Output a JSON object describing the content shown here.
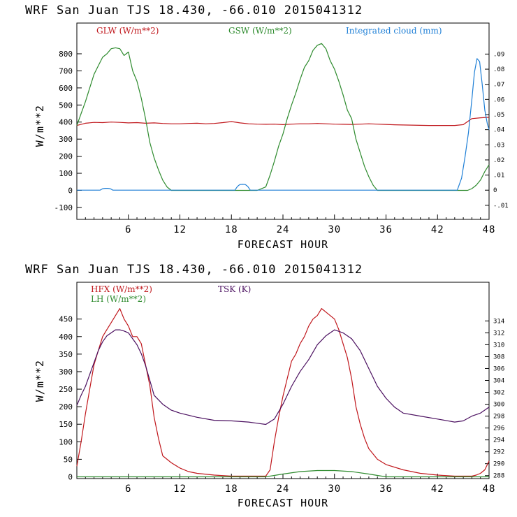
{
  "chart_data": [
    {
      "type": "line",
      "title": "WRF  San Juan TJS  18.430, -66.010  2015041312",
      "xlabel": "FORECAST HOUR",
      "ylabel": "W/m**2",
      "xlim": [
        0,
        48
      ],
      "ylim": [
        -170,
        980
      ],
      "xticks": [
        6,
        12,
        18,
        24,
        30,
        36,
        42,
        48
      ],
      "yticks": [
        -100,
        0,
        100,
        200,
        300,
        400,
        500,
        600,
        700,
        800
      ],
      "y2lim": [
        -0.0193,
        0.1105
      ],
      "y2ticks": [
        -0.01,
        0,
        0.01,
        0.02,
        0.03,
        0.04,
        0.05,
        0.06,
        0.07,
        0.08,
        0.09
      ],
      "y2ticklabels": [
        "-.01",
        "0",
        ".01",
        ".02",
        ".03",
        ".04",
        ".05",
        ".06",
        ".07",
        ".08",
        ".09"
      ],
      "series": [
        {
          "name": "GLW (W/m**2)",
          "color": "#c0171c",
          "axis": "left",
          "x": [
            0,
            1,
            2,
            3,
            4,
            5,
            6,
            7,
            8,
            9,
            10,
            11,
            12,
            13,
            14,
            15,
            16,
            17,
            18,
            19,
            20,
            21,
            22,
            23,
            24,
            25,
            26,
            27,
            28,
            29,
            30,
            31,
            32,
            33,
            34,
            35,
            36,
            37,
            38,
            39,
            40,
            41,
            42,
            43,
            44,
            45,
            46,
            47,
            48
          ],
          "y": [
            380,
            393,
            398,
            397,
            400,
            398,
            395,
            397,
            393,
            395,
            392,
            390,
            390,
            392,
            393,
            390,
            392,
            397,
            403,
            395,
            390,
            388,
            387,
            388,
            385,
            388,
            390,
            390,
            392,
            390,
            388,
            387,
            386,
            388,
            390,
            388,
            386,
            384,
            383,
            382,
            381,
            380,
            380,
            380,
            380,
            385,
            420,
            425,
            428
          ]
        },
        {
          "name": "GSW (W/m**2)",
          "color": "#2e8b2e",
          "axis": "left",
          "x": [
            0,
            0.5,
            1,
            1.5,
            2,
            2.5,
            3,
            3.5,
            4,
            4.5,
            5,
            5.5,
            6,
            6.5,
            7,
            7.5,
            8,
            8.5,
            9,
            9.5,
            10,
            10.5,
            11,
            21,
            22,
            22.5,
            23,
            23.5,
            24,
            24.5,
            25,
            25.5,
            26,
            26.5,
            27,
            27.5,
            28,
            28.5,
            29,
            29.5,
            30,
            30.5,
            31,
            31.5,
            32,
            32.5,
            33,
            33.5,
            34,
            34.5,
            35,
            45.5,
            46,
            46.5,
            47,
            47.5,
            48
          ],
          "y": [
            380,
            450,
            520,
            600,
            680,
            730,
            780,
            800,
            830,
            835,
            830,
            790,
            810,
            700,
            640,
            540,
            420,
            280,
            190,
            120,
            60,
            20,
            0,
            0,
            20,
            90,
            170,
            260,
            330,
            420,
            500,
            570,
            650,
            720,
            760,
            820,
            850,
            860,
            830,
            760,
            710,
            640,
            560,
            470,
            420,
            300,
            220,
            140,
            80,
            30,
            0,
            0,
            10,
            30,
            60,
            110,
            150
          ]
        },
        {
          "name": "Integrated cloud (mm)",
          "color": "#1e7fd6",
          "axis": "right",
          "x": [
            0,
            2.7,
            3,
            3.3,
            3.6,
            3.9,
            4.2,
            18.4,
            18.7,
            19,
            19.3,
            19.6,
            19.9,
            20.2,
            44.3,
            44.8,
            45.2,
            45.6,
            46,
            46.3,
            46.6,
            46.9,
            47.2,
            47.5,
            47.8,
            48
          ],
          "y": [
            0,
            0,
            0.001,
            0.0012,
            0.0012,
            0.001,
            0,
            0,
            0.0025,
            0.0038,
            0.004,
            0.0038,
            0.0025,
            0,
            0,
            0.008,
            0.022,
            0.038,
            0.06,
            0.078,
            0.087,
            0.085,
            0.07,
            0.053,
            0.044,
            0.04
          ]
        }
      ],
      "legend": [
        {
          "label": "GLW (W/m**2)",
          "color": "#c0171c"
        },
        {
          "label": "GSW (W/m**2)",
          "color": "#2e8b2e"
        },
        {
          "label": "Integrated cloud (mm)",
          "color": "#1e7fd6"
        }
      ]
    },
    {
      "type": "line",
      "title": "WRF  San Juan TJS  18.430, -66.010  2015041312",
      "xlabel": "FORECAST HOUR",
      "ylabel": "W/m**2",
      "xlim": [
        0,
        48
      ],
      "ylim": [
        -5,
        555
      ],
      "xticks": [
        6,
        12,
        18,
        24,
        30,
        36,
        42,
        48
      ],
      "yticks": [
        0,
        50,
        100,
        150,
        200,
        250,
        300,
        350,
        400,
        450
      ],
      "y2lim": [
        287.5,
        320.5
      ],
      "y2ticks": [
        288,
        290,
        292,
        294,
        296,
        298,
        300,
        302,
        304,
        306,
        308,
        310,
        312,
        314
      ],
      "y2ticklabels": [
        "288",
        "290",
        "292",
        "294",
        "296",
        "298",
        "300",
        "302",
        "304",
        "306",
        "308",
        "310",
        "312",
        "314"
      ],
      "series": [
        {
          "name": "HFX (W/m**2)",
          "color": "#c0171c",
          "axis": "left",
          "x": [
            0,
            0.5,
            1,
            1.5,
            2,
            2.5,
            3,
            3.5,
            4,
            4.5,
            5,
            5.5,
            6,
            6.5,
            7,
            7.5,
            8,
            8.5,
            9,
            9.5,
            10,
            11,
            12,
            13,
            14,
            16,
            18,
            20,
            22,
            22.5,
            23,
            23.5,
            24,
            24.5,
            25,
            25.5,
            26,
            26.5,
            27,
            27.5,
            28,
            28.5,
            29,
            29.5,
            30,
            30.5,
            31,
            31.5,
            32,
            32.5,
            33,
            33.5,
            34,
            35,
            36,
            38,
            40,
            42,
            44,
            45,
            46,
            46.5,
            47,
            47.5,
            48
          ],
          "y": [
            30,
            100,
            180,
            250,
            320,
            360,
            400,
            420,
            440,
            460,
            480,
            450,
            430,
            400,
            400,
            380,
            320,
            260,
            170,
            110,
            60,
            40,
            25,
            15,
            10,
            5,
            2,
            2,
            2,
            20,
            100,
            170,
            230,
            280,
            330,
            350,
            380,
            400,
            430,
            450,
            460,
            480,
            470,
            460,
            450,
            420,
            380,
            340,
            280,
            200,
            150,
            110,
            80,
            50,
            35,
            20,
            10,
            5,
            2,
            2,
            2,
            5,
            10,
            20,
            45
          ]
        },
        {
          "name": "LH (W/m**2)",
          "color": "#2e8b2e",
          "axis": "left",
          "x": [
            0,
            20,
            22,
            24,
            26,
            28,
            30,
            32,
            34,
            36,
            48
          ],
          "y": [
            0,
            0,
            0,
            8,
            15,
            18,
            18,
            15,
            8,
            0,
            0
          ]
        },
        {
          "name": "TSK (K)",
          "color": "#4b1060",
          "axis": "right",
          "x": [
            0,
            0.5,
            1,
            1.5,
            2,
            2.5,
            3,
            3.5,
            4,
            4.5,
            5,
            5.5,
            6,
            6.5,
            7,
            7.5,
            8,
            8.5,
            9,
            10,
            11,
            12,
            14,
            16,
            18,
            20,
            21,
            22,
            23,
            24,
            25,
            26,
            27,
            28,
            29,
            30,
            31,
            32,
            33,
            34,
            35,
            36,
            37,
            38,
            40,
            42,
            44,
            45,
            46,
            47,
            48
          ],
          "y": [
            299.8,
            301.5,
            303,
            305,
            307,
            309,
            310.5,
            311.5,
            312,
            312.5,
            312.5,
            312.3,
            312,
            311,
            310,
            308.5,
            306.5,
            304,
            301.5,
            300,
            299,
            298.5,
            297.8,
            297.3,
            297.2,
            297,
            296.8,
            296.6,
            297.5,
            300,
            303,
            305.5,
            307.5,
            310,
            311.5,
            312.5,
            312,
            311,
            309,
            306,
            303,
            301,
            299.5,
            298.5,
            298,
            297.5,
            297,
            297.2,
            298,
            298.5,
            299.5
          ]
        }
      ],
      "legend": [
        {
          "label": "HFX (W/m**2)",
          "color": "#c0171c"
        },
        {
          "label": "TSK (K)",
          "color": "#4b1060"
        },
        {
          "label": "LH (W/m**2)",
          "color": "#2e8b2e"
        }
      ]
    }
  ]
}
